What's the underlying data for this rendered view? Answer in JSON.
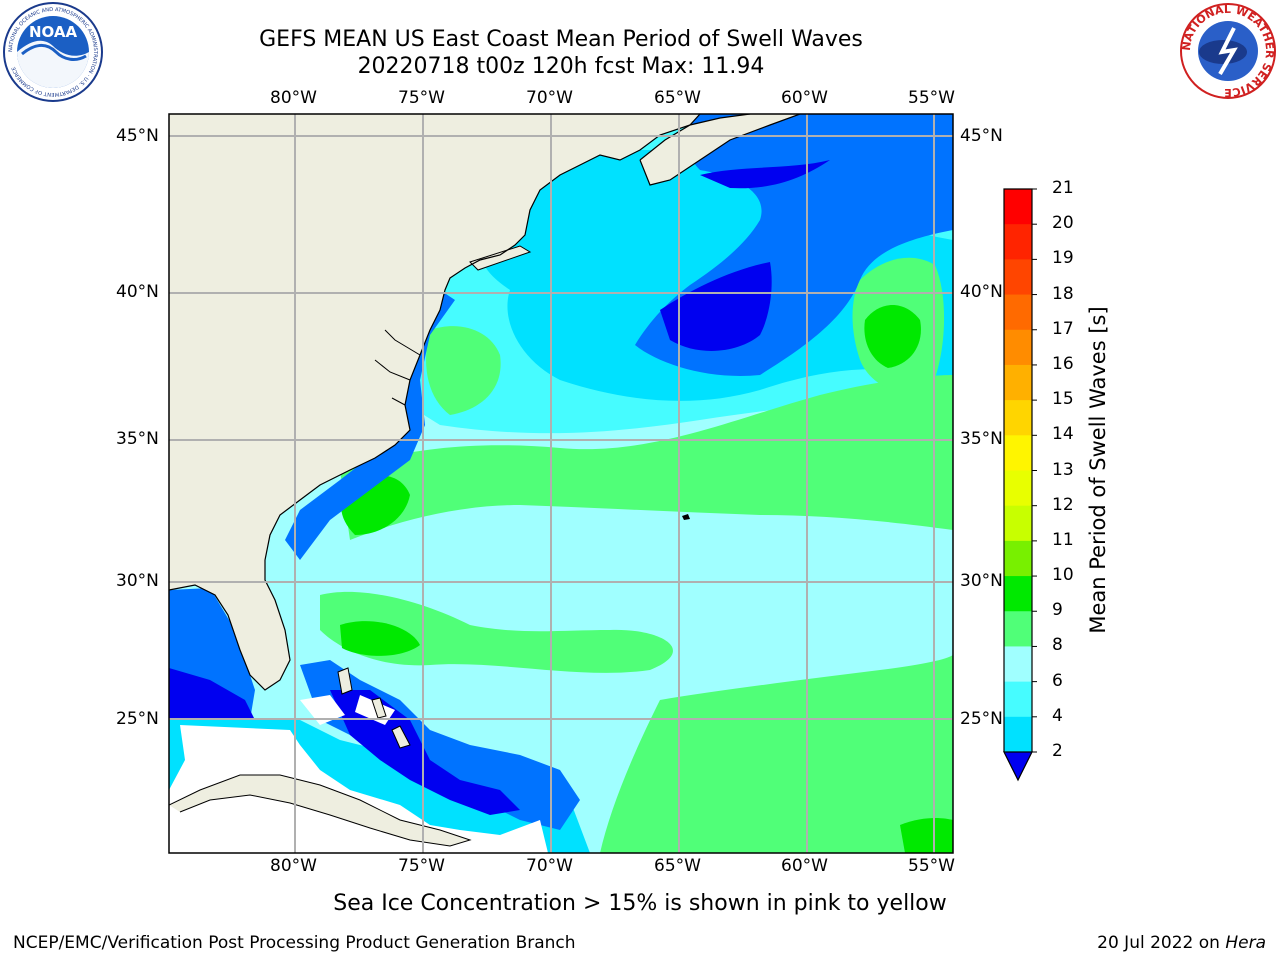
{
  "title": {
    "line1": "GEFS MEAN US East Coast Mean Period of Swell Waves",
    "line2": "20220718 t00z 120h fcst   Max: 11.94"
  },
  "logos": {
    "noaa_text": "NOAA",
    "noaa_ring_text": "NATIONAL OCEANIC AND ATMOSPHERIC ADMINISTRATION · U.S. DEPARTMENT OF COMMERCE",
    "nws_ring_text": "NATIONAL WEATHER SERVICE"
  },
  "map": {
    "lon_labels": [
      "80°W",
      "75°W",
      "70°W",
      "65°W",
      "60°W",
      "55°W"
    ],
    "lat_labels": [
      "45°N",
      "40°N",
      "35°N",
      "30°N",
      "25°N"
    ],
    "lon_range": [
      -85,
      -54.3
    ],
    "lat_range": [
      20.5,
      46
    ],
    "colors": {
      "land": "#eeeee0",
      "gridline": "#b0b0b0",
      "c2_4": "#0073ff",
      "c4_6": "#00e1ff",
      "c6_8": "#46fcff",
      "c8_9": "#a0ffff",
      "c9_10": "#50ff78",
      "c10_11": "#00e900",
      "below2": "#0000f0"
    }
  },
  "colorbar": {
    "labels": [
      "21",
      "20",
      "19",
      "18",
      "17",
      "16",
      "15",
      "14",
      "13",
      "12",
      "11",
      "10",
      "9",
      "8",
      "6",
      "4",
      "2"
    ],
    "colors": [
      "#ff0000",
      "#ff2400",
      "#ff4500",
      "#ff6a00",
      "#ff8c00",
      "#ffb000",
      "#ffd500",
      "#fff500",
      "#e8ff00",
      "#c8ff00",
      "#78f000",
      "#00e900",
      "#50ff78",
      "#a0ffff",
      "#46fcff",
      "#00e1ff",
      "#0073ff"
    ],
    "extend_color": "#0000f0",
    "title": "Mean Period of Swell Waves [s]"
  },
  "note": "Sea Ice Concentration > 15% is shown in pink to yellow",
  "footer": {
    "left": "NCEP/EMC/Verification Post Processing Product Generation Branch",
    "date": "20 Jul 2022 on ",
    "machine": "Hera"
  }
}
